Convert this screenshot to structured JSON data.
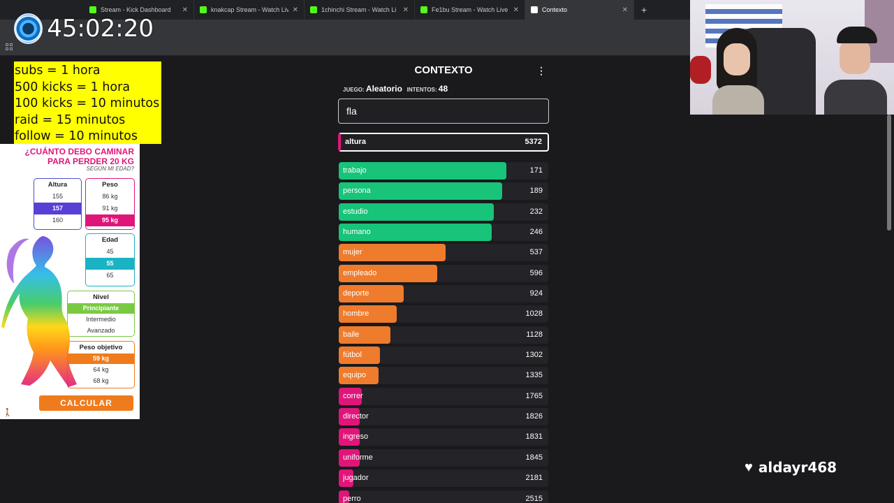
{
  "browser": {
    "tabs": [
      {
        "title": "Stream - Kick Dashboard",
        "active": false
      },
      {
        "title": "knakcap Stream - Watch Live o",
        "active": false
      },
      {
        "title": "1chinchi Stream - Watch Li",
        "active": false
      },
      {
        "title": "Fe1bu Stream - Watch Live",
        "active": false
      },
      {
        "title": "Contexto",
        "active": true
      }
    ],
    "new_tab": "+"
  },
  "overlay": {
    "timer": "45:02:20",
    "rules": [
      "subs = 1 hora",
      "500 kicks = 1 hora",
      "100 kicks = 10 minutos",
      "raid = 15 minutos",
      "follow = 10 minutos"
    ],
    "follower": "aldayr468"
  },
  "ad": {
    "title_line1": "¿CUÁNTO DEBO CAMINAR",
    "title_line2": "PARA PERDER 20 KG",
    "subtitle": "SEGÚN MI EDAD?",
    "altura": {
      "label": "Altura",
      "options": [
        "155",
        "157",
        "160"
      ],
      "selected": 1
    },
    "peso": {
      "label": "Peso",
      "options": [
        "86 kg",
        "91 kg",
        "95 kg"
      ],
      "selected": 2
    },
    "edad": {
      "label": "Edad",
      "options": [
        "45",
        "55",
        "65"
      ],
      "selected": 1
    },
    "nivel": {
      "label": "Nivel",
      "options": [
        "Principiante",
        "Intermedio",
        "Avanzado"
      ],
      "selected": 0
    },
    "peso_objetivo": {
      "label": "Peso objetivo",
      "options": [
        "59 kg",
        "64 kg",
        "68 kg"
      ],
      "selected": 0
    },
    "button": "CALCULAR",
    "colors": {
      "altura_sel": "#5a3fd6",
      "peso_sel": "#e0157a",
      "edad_sel": "#1ab3c4",
      "nivel_sel": "#7ac943",
      "obj_sel": "#f07b1c"
    }
  },
  "game": {
    "title": "CONTEXTO",
    "juego_label": "JUEGO:",
    "juego_value": "Aleatorio",
    "intentos_label": "INTENTOS:",
    "intentos_value": "48",
    "input_value": "fla",
    "last_guess": {
      "word": "altura",
      "rank": "5372"
    },
    "colors": {
      "green": "#17c47a",
      "orange": "#ef7b2d",
      "pink": "#e0157a"
    },
    "guesses": [
      {
        "word": "trabajo",
        "rank": "171",
        "color": "green",
        "fill": 0.8
      },
      {
        "word": "persona",
        "rank": "189",
        "color": "green",
        "fill": 0.78
      },
      {
        "word": "estudio",
        "rank": "232",
        "color": "green",
        "fill": 0.74
      },
      {
        "word": "humano",
        "rank": "246",
        "color": "green",
        "fill": 0.73
      },
      {
        "word": "mujer",
        "rank": "537",
        "color": "orange",
        "fill": 0.51
      },
      {
        "word": "empleado",
        "rank": "596",
        "color": "orange",
        "fill": 0.47
      },
      {
        "word": "deporte",
        "rank": "924",
        "color": "orange",
        "fill": 0.31
      },
      {
        "word": "hombre",
        "rank": "1028",
        "color": "orange",
        "fill": 0.275
      },
      {
        "word": "baile",
        "rank": "1128",
        "color": "orange",
        "fill": 0.245
      },
      {
        "word": "fútbol",
        "rank": "1302",
        "color": "orange",
        "fill": 0.195
      },
      {
        "word": "equipo",
        "rank": "1335",
        "color": "orange",
        "fill": 0.19
      },
      {
        "word": "correr",
        "rank": "1765",
        "color": "pink",
        "fill": 0.11
      },
      {
        "word": "director",
        "rank": "1826",
        "color": "pink",
        "fill": 0.1
      },
      {
        "word": "ingreso",
        "rank": "1831",
        "color": "pink",
        "fill": 0.1
      },
      {
        "word": "uniforme",
        "rank": "1845",
        "color": "pink",
        "fill": 0.1
      },
      {
        "word": "jugador",
        "rank": "2181",
        "color": "pink",
        "fill": 0.07
      },
      {
        "word": "perro",
        "rank": "2515",
        "color": "pink",
        "fill": 0.05
      }
    ]
  }
}
